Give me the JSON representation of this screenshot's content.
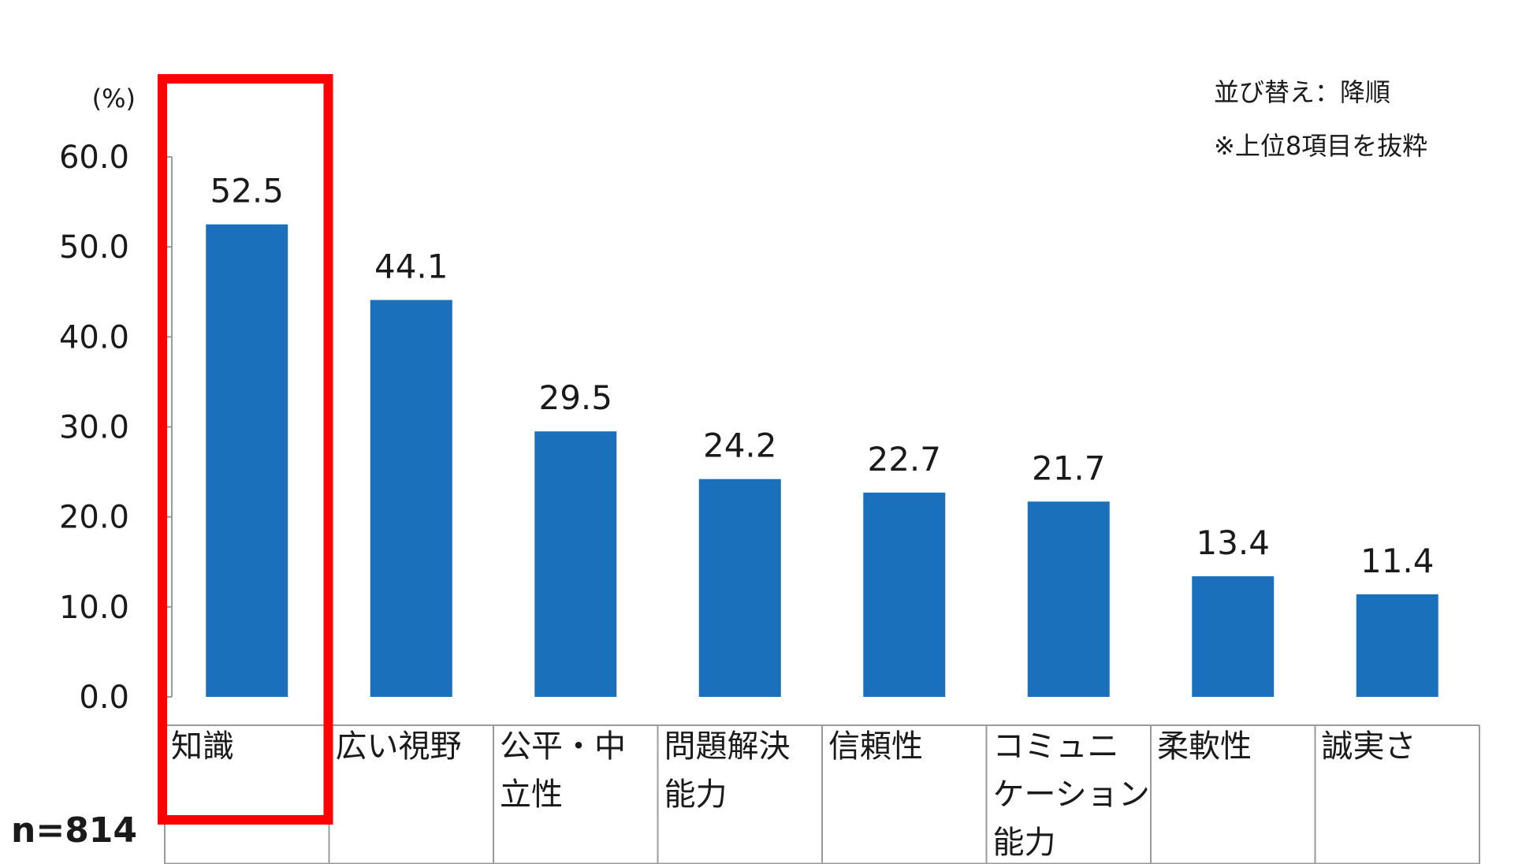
{
  "chart_data": {
    "type": "bar",
    "unit": "(%)",
    "categories": [
      [
        "知識"
      ],
      [
        "広い視野"
      ],
      [
        "公平・中",
        "立性"
      ],
      [
        "問題解決",
        "能力"
      ],
      [
        "信頼性"
      ],
      [
        "コミュニ",
        "ケーション",
        "能力"
      ],
      [
        "柔軟性"
      ],
      [
        "誠実さ"
      ]
    ],
    "values": [
      52.5,
      44.1,
      29.5,
      24.2,
      22.7,
      21.7,
      13.4,
      11.4
    ],
    "value_labels": [
      "52.5",
      "44.1",
      "29.5",
      "24.2",
      "22.7",
      "21.7",
      "13.4",
      "11.4"
    ],
    "y_ticks": [
      0,
      10,
      20,
      30,
      40,
      50,
      60
    ],
    "y_tick_labels": [
      "0.0",
      "10.0",
      "20.0",
      "30.0",
      "40.0",
      "50.0",
      "60.0"
    ],
    "ylim": [
      0,
      60
    ],
    "highlight_index": 0,
    "sample_size": "n=814",
    "notes": [
      "並び替え：降順",
      "※上位8項目を抜粋"
    ]
  },
  "colors": {
    "bar": "#1a70ba",
    "highlight": "#ff0000",
    "axis": "#9a9a9a"
  }
}
